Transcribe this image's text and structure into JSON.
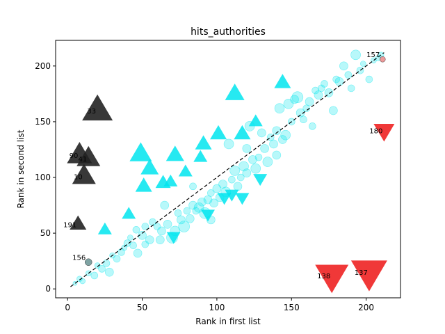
{
  "chart_data": {
    "type": "scatter",
    "title": "hits_authorities",
    "xlabel": "Rank in first list",
    "ylabel": "Rank in second list",
    "xlim": [
      -8,
      223
    ],
    "ylim": [
      -8,
      223
    ],
    "xticks": [
      0,
      50,
      100,
      150,
      200
    ],
    "yticks": [
      0,
      50,
      100,
      150,
      200
    ],
    "grid": false,
    "diagonal": {
      "x": [
        2,
        212
      ],
      "y": [
        2,
        212
      ],
      "style": "dashed",
      "color": "#000000"
    },
    "colors": {
      "cyan": "#00e5ee",
      "dark": "#222222",
      "red": "#ee2222",
      "pink": "#e88080",
      "gray": "#5f8c8c"
    },
    "points": [
      {
        "x": 5,
        "y": 5,
        "s": 3
      },
      {
        "x": 8,
        "y": 9,
        "s": 4
      },
      {
        "x": 10,
        "y": 7,
        "s": 4
      },
      {
        "x": 14,
        "y": 14,
        "s": 4
      },
      {
        "x": 18,
        "y": 12,
        "s": 5
      },
      {
        "x": 20,
        "y": 21,
        "s": 4
      },
      {
        "x": 23,
        "y": 18,
        "s": 5
      },
      {
        "x": 26,
        "y": 23,
        "s": 5
      },
      {
        "x": 28,
        "y": 15,
        "s": 6
      },
      {
        "x": 30,
        "y": 30,
        "s": 4
      },
      {
        "x": 33,
        "y": 27,
        "s": 5
      },
      {
        "x": 36,
        "y": 33,
        "s": 5
      },
      {
        "x": 38,
        "y": 37,
        "s": 4
      },
      {
        "x": 40,
        "y": 41,
        "s": 5
      },
      {
        "x": 42,
        "y": 46,
        "s": 4
      },
      {
        "x": 44,
        "y": 39,
        "s": 5
      },
      {
        "x": 46,
        "y": 53,
        "s": 5
      },
      {
        "x": 47,
        "y": 32,
        "s": 6
      },
      {
        "x": 50,
        "y": 48,
        "s": 6
      },
      {
        "x": 52,
        "y": 40,
        "s": 5
      },
      {
        "x": 55,
        "y": 44,
        "s": 6
      },
      {
        "x": 57,
        "y": 60,
        "s": 5
      },
      {
        "x": 60,
        "y": 56,
        "s": 5
      },
      {
        "x": 63,
        "y": 52,
        "s": 6
      },
      {
        "x": 65,
        "y": 75,
        "s": 6
      },
      {
        "x": 67,
        "y": 58,
        "s": 6
      },
      {
        "x": 70,
        "y": 46,
        "s": 8
      },
      {
        "x": 72,
        "y": 52,
        "s": 7
      },
      {
        "x": 74,
        "y": 68,
        "s": 5
      },
      {
        "x": 76,
        "y": 62,
        "s": 6
      },
      {
        "x": 78,
        "y": 56,
        "s": 8
      },
      {
        "x": 80,
        "y": 70,
        "s": 5
      },
      {
        "x": 82,
        "y": 63,
        "s": 6
      },
      {
        "x": 84,
        "y": 75,
        "s": 6
      },
      {
        "x": 86,
        "y": 70,
        "s": 5
      },
      {
        "x": 88,
        "y": 73,
        "s": 7
      },
      {
        "x": 90,
        "y": 78,
        "s": 6
      },
      {
        "x": 92,
        "y": 68,
        "s": 8
      },
      {
        "x": 94,
        "y": 80,
        "s": 6
      },
      {
        "x": 96,
        "y": 86,
        "s": 5
      },
      {
        "x": 98,
        "y": 77,
        "s": 6
      },
      {
        "x": 100,
        "y": 90,
        "s": 6
      },
      {
        "x": 102,
        "y": 82,
        "s": 6
      },
      {
        "x": 104,
        "y": 94,
        "s": 6
      },
      {
        "x": 106,
        "y": 87,
        "s": 7
      },
      {
        "x": 108,
        "y": 130,
        "s": 7
      },
      {
        "x": 110,
        "y": 98,
        "s": 5
      },
      {
        "x": 112,
        "y": 106,
        "s": 7
      },
      {
        "x": 114,
        "y": 92,
        "s": 6
      },
      {
        "x": 116,
        "y": 100,
        "s": 5
      },
      {
        "x": 118,
        "y": 110,
        "s": 7
      },
      {
        "x": 120,
        "y": 104,
        "s": 6
      },
      {
        "x": 122,
        "y": 146,
        "s": 7
      },
      {
        "x": 124,
        "y": 116,
        "s": 6
      },
      {
        "x": 126,
        "y": 108,
        "s": 7
      },
      {
        "x": 128,
        "y": 118,
        "s": 5
      },
      {
        "x": 130,
        "y": 140,
        "s": 6
      },
      {
        "x": 132,
        "y": 126,
        "s": 6
      },
      {
        "x": 134,
        "y": 114,
        "s": 7
      },
      {
        "x": 136,
        "y": 136,
        "s": 5
      },
      {
        "x": 138,
        "y": 130,
        "s": 6
      },
      {
        "x": 140,
        "y": 142,
        "s": 6
      },
      {
        "x": 142,
        "y": 162,
        "s": 7
      },
      {
        "x": 144,
        "y": 134,
        "s": 6
      },
      {
        "x": 146,
        "y": 138,
        "s": 7
      },
      {
        "x": 148,
        "y": 166,
        "s": 7
      },
      {
        "x": 150,
        "y": 150,
        "s": 5
      },
      {
        "x": 152,
        "y": 170,
        "s": 6
      },
      {
        "x": 154,
        "y": 172,
        "s": 8
      },
      {
        "x": 156,
        "y": 158,
        "s": 6
      },
      {
        "x": 158,
        "y": 152,
        "s": 5
      },
      {
        "x": 160,
        "y": 162,
        "s": 5
      },
      {
        "x": 162,
        "y": 168,
        "s": 6
      },
      {
        "x": 164,
        "y": 146,
        "s": 5
      },
      {
        "x": 166,
        "y": 178,
        "s": 5
      },
      {
        "x": 168,
        "y": 174,
        "s": 6
      },
      {
        "x": 170,
        "y": 180,
        "s": 5
      },
      {
        "x": 172,
        "y": 184,
        "s": 5
      },
      {
        "x": 175,
        "y": 176,
        "s": 6
      },
      {
        "x": 178,
        "y": 160,
        "s": 6
      },
      {
        "x": 180,
        "y": 188,
        "s": 5
      },
      {
        "x": 182,
        "y": 186,
        "s": 6
      },
      {
        "x": 185,
        "y": 200,
        "s": 6
      },
      {
        "x": 188,
        "y": 192,
        "s": 5
      },
      {
        "x": 190,
        "y": 180,
        "s": 5
      },
      {
        "x": 193,
        "y": 210,
        "s": 7
      },
      {
        "x": 196,
        "y": 196,
        "s": 5
      },
      {
        "x": 198,
        "y": 202,
        "s": 4
      },
      {
        "x": 202,
        "y": 188,
        "s": 5
      },
      {
        "x": 205,
        "y": 205,
        "s": 4
      },
      {
        "x": 208,
        "y": 207,
        "s": 4
      },
      {
        "x": 210,
        "y": 210,
        "s": 4
      },
      {
        "x": 120,
        "y": 126,
        "s": 6
      },
      {
        "x": 96,
        "y": 62,
        "s": 6
      },
      {
        "x": 62,
        "y": 44,
        "s": 6
      },
      {
        "x": 84,
        "y": 92,
        "s": 5
      },
      {
        "x": 52,
        "y": 56,
        "s": 5
      },
      {
        "x": 140,
        "y": 120,
        "s": 6
      }
    ],
    "triangles_up": [
      {
        "x": 25,
        "y": 53,
        "s": 10
      },
      {
        "x": 41,
        "y": 67,
        "s": 10
      },
      {
        "x": 49,
        "y": 121,
        "s": 16
      },
      {
        "x": 51,
        "y": 92,
        "s": 12
      },
      {
        "x": 55,
        "y": 108,
        "s": 13
      },
      {
        "x": 64,
        "y": 95,
        "s": 11
      },
      {
        "x": 69,
        "y": 96,
        "s": 10
      },
      {
        "x": 72,
        "y": 120,
        "s": 13
      },
      {
        "x": 79,
        "y": 105,
        "s": 10
      },
      {
        "x": 89,
        "y": 118,
        "s": 10
      },
      {
        "x": 91,
        "y": 130,
        "s": 12
      },
      {
        "x": 101,
        "y": 139,
        "s": 12
      },
      {
        "x": 112,
        "y": 175,
        "s": 14
      },
      {
        "x": 117,
        "y": 139,
        "s": 12
      },
      {
        "x": 126,
        "y": 150,
        "s": 10
      },
      {
        "x": 144,
        "y": 185,
        "s": 12
      }
    ],
    "triangles_down": [
      {
        "x": 71,
        "y": 47,
        "s": 10
      },
      {
        "x": 94,
        "y": 67,
        "s": 10
      },
      {
        "x": 105,
        "y": 82,
        "s": 10
      },
      {
        "x": 110,
        "y": 85,
        "s": 10
      },
      {
        "x": 117,
        "y": 82,
        "s": 10
      },
      {
        "x": 129,
        "y": 99,
        "s": 10
      }
    ],
    "highlight_up": [
      {
        "x": 20,
        "y": 160,
        "s": 22,
        "label": "33"
      },
      {
        "x": 8,
        "y": 120,
        "s": 18,
        "label": "90"
      },
      {
        "x": 14,
        "y": 117,
        "s": 17,
        "label": "41"
      },
      {
        "x": 11,
        "y": 101,
        "s": 17,
        "label": "10"
      },
      {
        "x": 7,
        "y": 58,
        "s": 12,
        "label": "191"
      }
    ],
    "highlight_down": [
      {
        "x": 212,
        "y": 142,
        "s": 15,
        "label": "180"
      },
      {
        "x": 177,
        "y": 12,
        "s": 24,
        "label": "138"
      },
      {
        "x": 202,
        "y": 15,
        "s": 26,
        "label": "137"
      }
    ],
    "highlight_points": [
      {
        "x": 14,
        "y": 24,
        "s": 5,
        "label": "156",
        "color": "gray"
      },
      {
        "x": 211,
        "y": 206,
        "s": 4,
        "label": "157",
        "color": "pink"
      }
    ]
  }
}
